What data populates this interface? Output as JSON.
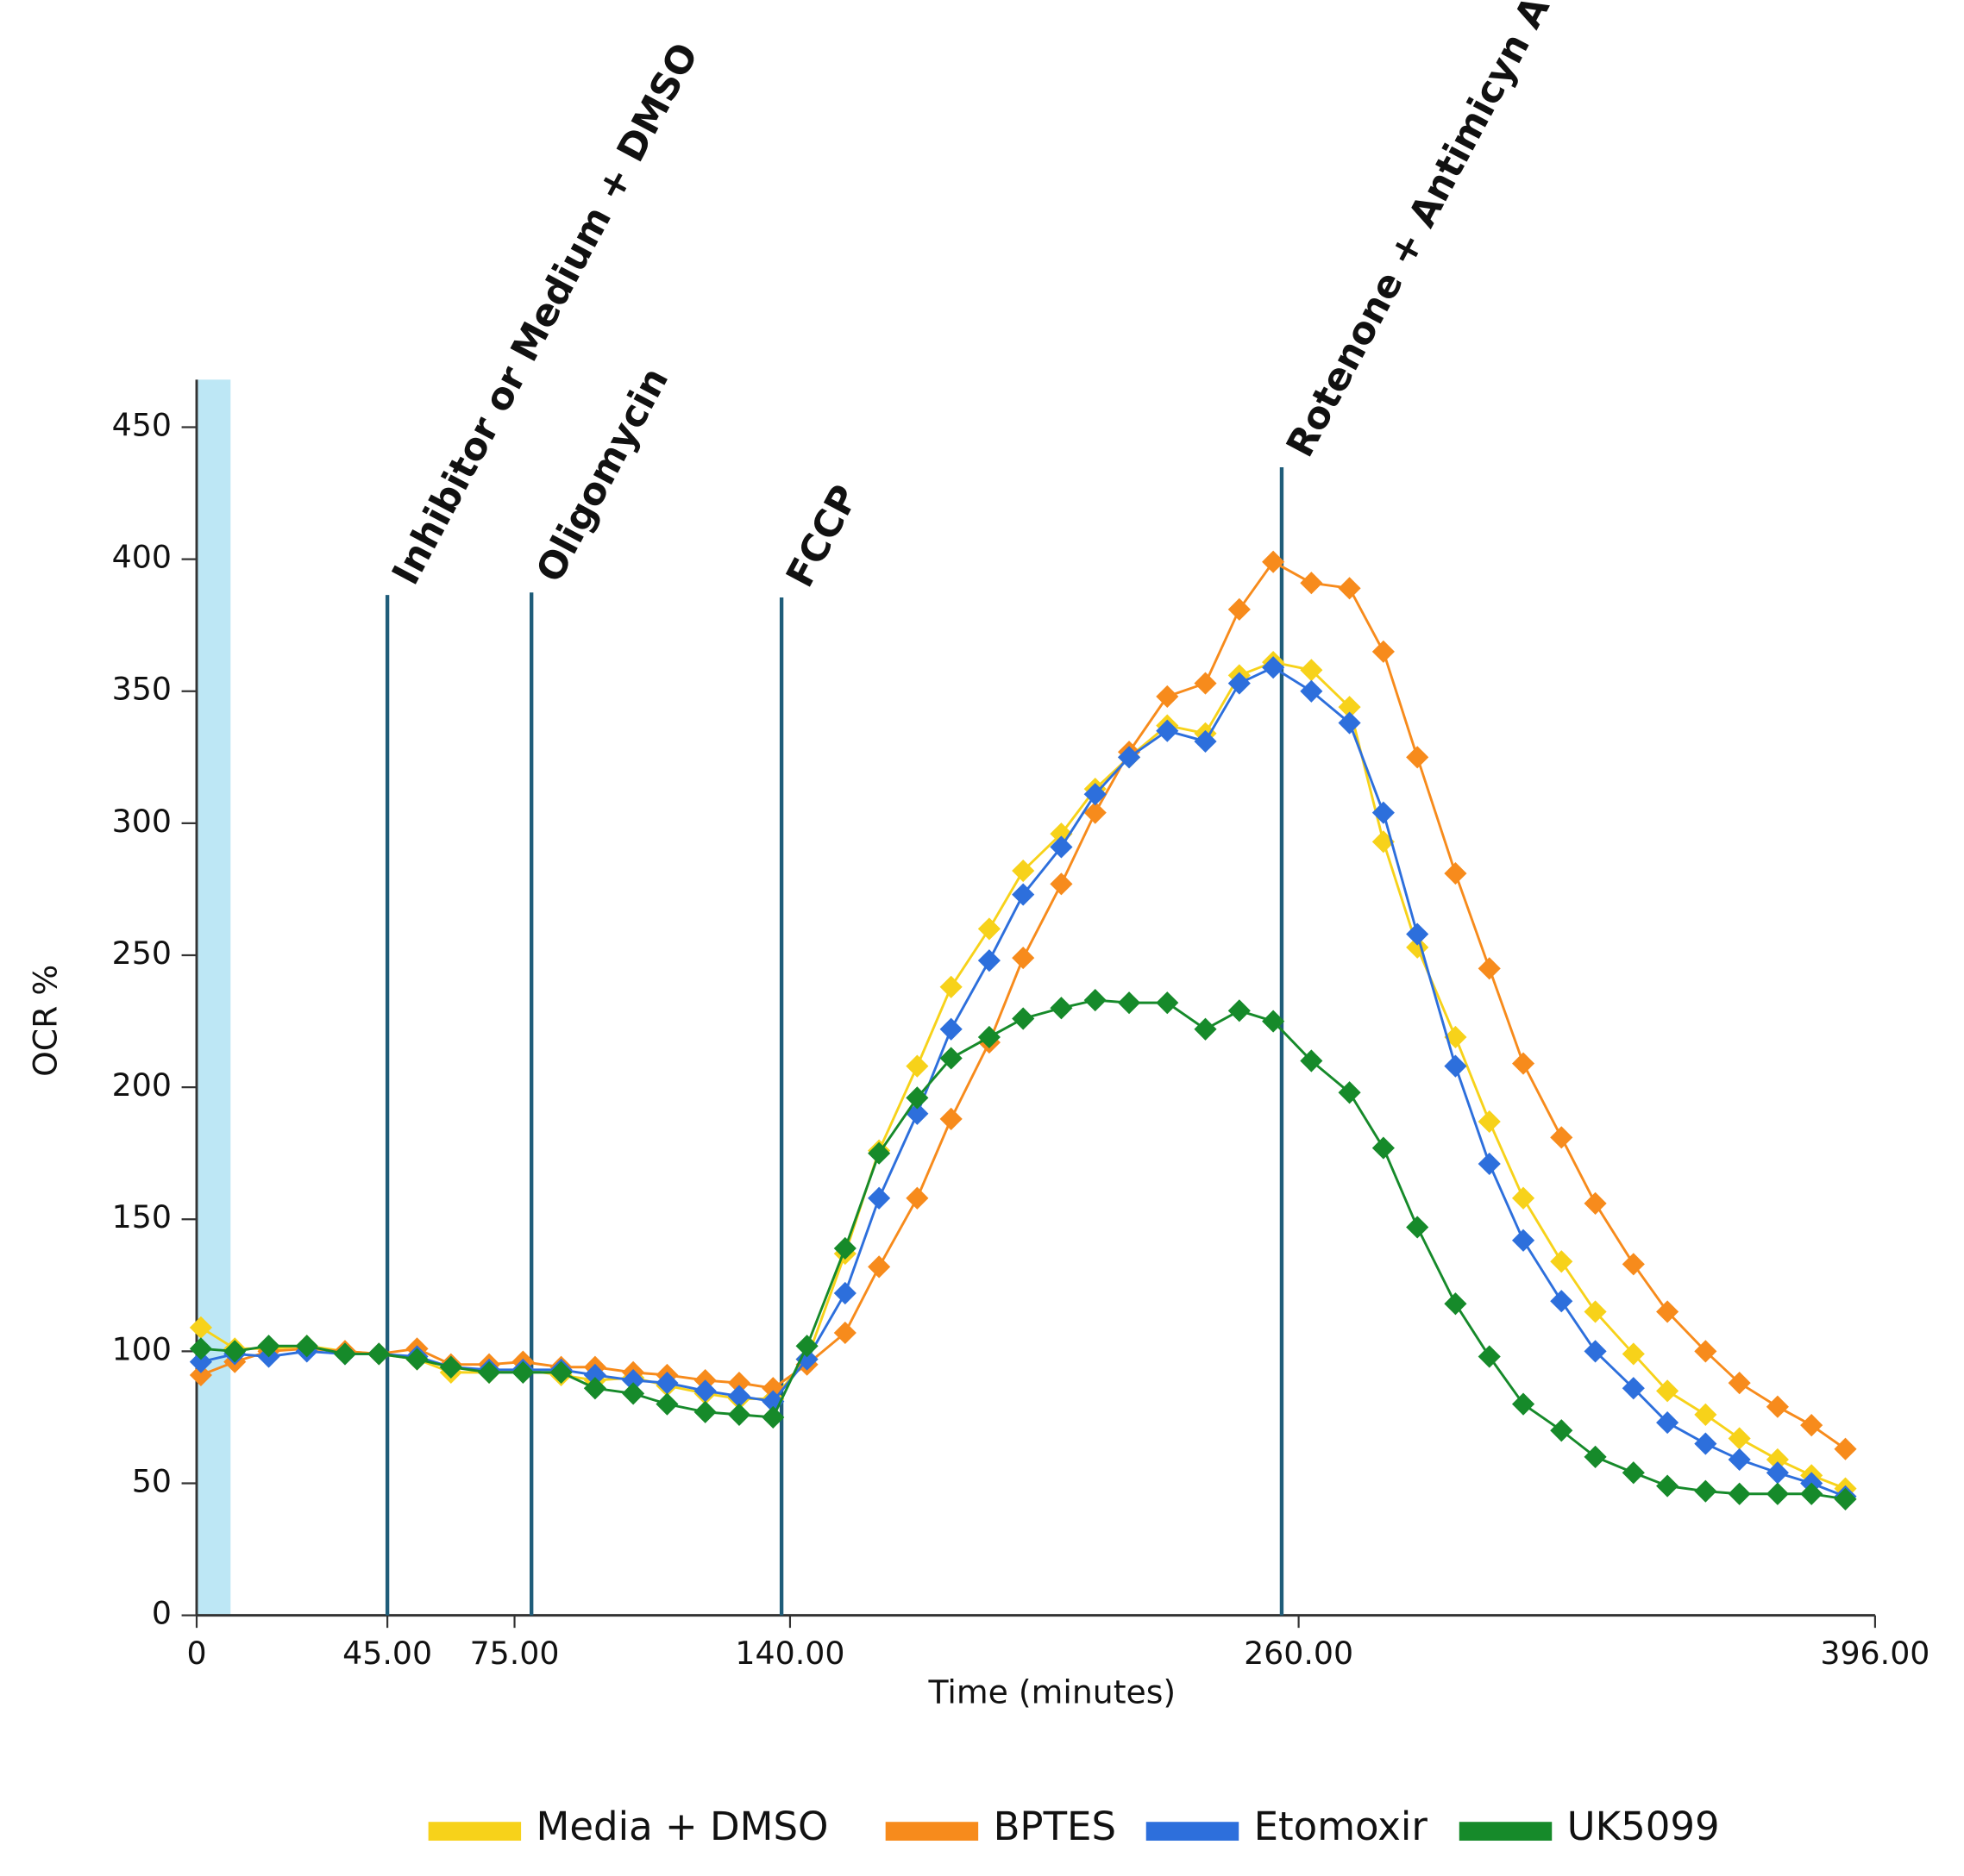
{
  "chart_data": {
    "type": "line",
    "xlabel": "Time (minutes)",
    "ylabel": "OCR %",
    "xlim": [
      0,
      396
    ],
    "ylim": [
      0,
      450
    ],
    "xticks": [
      0,
      {
        "value": 45,
        "label": "45.00"
      },
      {
        "value": 75,
        "label": "75.00"
      },
      {
        "value": 140,
        "label": "140.00"
      },
      {
        "value": 260,
        "label": "260.00"
      },
      {
        "value": 396,
        "label": "396.00"
      }
    ],
    "yticks": [
      0,
      50,
      100,
      150,
      200,
      250,
      300,
      350,
      400,
      450
    ],
    "highlight": {
      "range": [
        0,
        8
      ],
      "color": "#bde7f5"
    },
    "events": [
      {
        "label": "Inhibitor or Medium + DMSO",
        "x": 45
      },
      {
        "label": "Oligomycin",
        "x": 79
      },
      {
        "label": "FCCP",
        "x": 138
      },
      {
        "label": "Rotenone + Antimicyn A",
        "x": 256
      }
    ],
    "event_color": "#1f5d7a",
    "x": [
      1,
      9,
      17,
      26,
      35,
      43,
      52,
      60,
      69,
      77,
      86,
      94,
      103,
      111,
      120,
      128,
      136,
      144,
      153,
      161,
      170,
      178,
      187,
      195,
      204,
      212,
      220,
      229,
      238,
      246,
      254,
      263,
      272,
      280,
      288,
      297,
      305,
      313,
      322,
      330,
      339,
      347,
      356,
      364,
      373,
      381,
      389
    ],
    "series": [
      {
        "name": "Media + DMSO",
        "color": "#f7d21a",
        "values": [
          109,
          101,
          101,
          102,
          100,
          99,
          97,
          92,
          92,
          93,
          91,
          89,
          90,
          87,
          84,
          82,
          82,
          97,
          137,
          176,
          208,
          238,
          260,
          282,
          296,
          313,
          325,
          337,
          334,
          356,
          361,
          358,
          344,
          293,
          253,
          219,
          187,
          158,
          134,
          115,
          99,
          85,
          76,
          67,
          59,
          53,
          48
        ]
      },
      {
        "name": "BPTES",
        "color": "#f78b1c",
        "values": [
          91,
          96,
          100,
          101,
          100,
          99,
          101,
          95,
          95,
          96,
          94,
          94,
          92,
          91,
          89,
          88,
          86,
          95,
          107,
          132,
          158,
          188,
          217,
          249,
          277,
          304,
          327,
          348,
          353,
          381,
          399,
          391,
          389,
          365,
          325,
          281,
          245,
          209,
          181,
          156,
          133,
          115,
          100,
          88,
          79,
          72,
          63
        ]
      },
      {
        "name": "Etomoxir",
        "color": "#2d6fdc",
        "values": [
          96,
          99,
          98,
          100,
          99,
          99,
          98,
          94,
          93,
          93,
          93,
          91,
          89,
          88,
          85,
          83,
          81,
          97,
          122,
          158,
          190,
          222,
          248,
          273,
          291,
          311,
          325,
          335,
          331,
          353,
          359,
          350,
          338,
          304,
          258,
          208,
          171,
          142,
          119,
          100,
          86,
          73,
          65,
          59,
          54,
          50,
          45
        ]
      },
      {
        "name": "UK5099",
        "color": "#168a2a",
        "values": [
          101,
          100,
          102,
          102,
          99,
          99,
          97,
          94,
          92,
          92,
          92,
          86,
          84,
          80,
          77,
          76,
          75,
          102,
          139,
          175,
          196,
          211,
          219,
          226,
          230,
          233,
          232,
          232,
          222,
          229,
          225,
          210,
          198,
          177,
          147,
          118,
          98,
          80,
          70,
          60,
          54,
          49,
          47,
          46,
          46,
          46,
          44
        ]
      }
    ]
  }
}
